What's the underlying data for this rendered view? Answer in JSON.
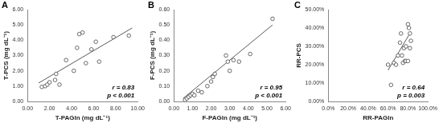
{
  "chart_data": [
    {
      "type": "scatter",
      "panel": "A",
      "x_label": "T-PAGln (mg dL⁻¹)",
      "y_label": "T-PCS (mg dL⁻¹)",
      "xlim": [
        0,
        10
      ],
      "xticks": [
        {
          "value": 0,
          "label": "0.00"
        },
        {
          "value": 2,
          "label": "2.00"
        },
        {
          "value": 4,
          "label": "4.00"
        },
        {
          "value": 6,
          "label": "6.00"
        },
        {
          "value": 8,
          "label": "8.00"
        },
        {
          "value": 10,
          "label": "10.00"
        }
      ],
      "ylim": [
        0,
        6
      ],
      "yticks": [
        {
          "value": 0,
          "label": "0.00"
        },
        {
          "value": 1,
          "label": "1.00"
        },
        {
          "value": 2,
          "label": "2.00"
        },
        {
          "value": 3,
          "label": "3.00"
        },
        {
          "value": 4,
          "label": "4.00"
        },
        {
          "value": 5,
          "label": "5.00"
        },
        {
          "value": 6,
          "label": "6.00"
        }
      ],
      "x": [
        1.3,
        1.6,
        1.8,
        2.0,
        2.5,
        2.6,
        2.9,
        3.5,
        4.2,
        4.5,
        4.7,
        5.0,
        5.3,
        5.8,
        6.2,
        6.5,
        7.8,
        9.2
      ],
      "y": [
        0.95,
        1.0,
        1.1,
        1.25,
        1.4,
        1.8,
        1.1,
        2.7,
        2.0,
        3.5,
        4.4,
        4.5,
        2.5,
        3.4,
        3.9,
        2.6,
        4.2,
        4.3
      ],
      "trendline": {
        "x": [
          1.0,
          9.5
        ],
        "y": [
          1.2,
          4.8
        ]
      },
      "annotations": [
        "r = 0.83",
        "p < 0.001"
      ],
      "color": "#595959",
      "marker": "circle",
      "grid": false
    },
    {
      "type": "scatter",
      "panel": "B",
      "x_label": "F-PAGln (mg dL⁻¹)",
      "y_label": "F-PCS (mg dL⁻¹)",
      "xlim": [
        0,
        6
      ],
      "xticks": [
        {
          "value": 0,
          "label": "0.00"
        },
        {
          "value": 1,
          "label": "1.00"
        },
        {
          "value": 2,
          "label": "2.00"
        },
        {
          "value": 3,
          "label": "3.00"
        },
        {
          "value": 4,
          "label": "4.00"
        },
        {
          "value": 5,
          "label": "5.00"
        },
        {
          "value": 6,
          "label": "6.00"
        }
      ],
      "ylim": [
        0,
        0.6
      ],
      "yticks": [
        {
          "value": 0,
          "label": "0.00"
        },
        {
          "value": 0.1,
          "label": "0.10"
        },
        {
          "value": 0.2,
          "label": "0.20"
        },
        {
          "value": 0.3,
          "label": "0.30"
        },
        {
          "value": 0.4,
          "label": "0.40"
        },
        {
          "value": 0.5,
          "label": "0.50"
        },
        {
          "value": 0.6,
          "label": "0.60"
        }
      ],
      "x": [
        0.6,
        0.7,
        0.8,
        0.9,
        1.0,
        1.1,
        1.3,
        1.5,
        1.8,
        2.0,
        2.1,
        2.2,
        2.8,
        2.9,
        3.0,
        3.2,
        3.5,
        4.1,
        5.3
      ],
      "y": [
        0.01,
        0.02,
        0.03,
        0.04,
        0.05,
        0.04,
        0.07,
        0.06,
        0.1,
        0.13,
        0.16,
        0.18,
        0.3,
        0.26,
        0.2,
        0.27,
        0.26,
        0.31,
        0.54
      ],
      "trendline": {
        "x": [
          0.5,
          5.3
        ],
        "y": [
          0.02,
          0.5
        ]
      },
      "annotations": [
        "r = 0.95",
        "p < 0.001"
      ],
      "color": "#595959",
      "marker": "circle",
      "grid": false
    },
    {
      "type": "scatter",
      "panel": "C",
      "x_label": "RR-PAGln",
      "y_label": "RR-PCS",
      "xlim": [
        0,
        100
      ],
      "xticks": [
        {
          "value": 0,
          "label": "0.0%"
        },
        {
          "value": 20,
          "label": "20.0%"
        },
        {
          "value": 40,
          "label": "40.0%"
        },
        {
          "value": 60,
          "label": "60.0%"
        },
        {
          "value": 80,
          "label": "80.0%"
        },
        {
          "value": 100,
          "label": "100.0%"
        }
      ],
      "ylim": [
        0,
        50
      ],
      "yticks": [
        {
          "value": 0,
          "label": "0.00%"
        },
        {
          "value": 10,
          "label": "10.00%"
        },
        {
          "value": 20,
          "label": "20.00%"
        },
        {
          "value": 30,
          "label": "30.00%"
        },
        {
          "value": 40,
          "label": "40.00%"
        },
        {
          "value": 50,
          "label": "50.00%"
        }
      ],
      "x": [
        60,
        63,
        66,
        68,
        70,
        72,
        73,
        74,
        75,
        76,
        77,
        78,
        78,
        80,
        81,
        82,
        82,
        80,
        83
      ],
      "y": [
        20,
        9,
        21,
        20,
        25,
        32,
        37,
        25,
        21,
        29,
        22,
        22,
        30,
        42,
        40,
        37,
        29,
        22,
        33
      ],
      "trendline": {
        "x": [
          60,
          83
        ],
        "y": [
          17,
          38
        ]
      },
      "annotations": [
        "r = 0.64",
        "p = 0.003"
      ],
      "color": "#595959",
      "marker": "circle",
      "grid": false
    }
  ]
}
